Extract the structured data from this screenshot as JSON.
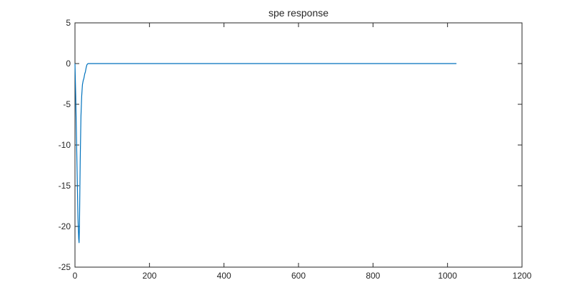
{
  "chart_data": {
    "type": "line",
    "title": "spe response",
    "xlabel": "",
    "ylabel": "",
    "xlim": [
      0,
      1200
    ],
    "ylim": [
      -25,
      5
    ],
    "xticks": [
      0,
      200,
      400,
      600,
      800,
      1000,
      1200
    ],
    "yticks": [
      5,
      0,
      -5,
      -10,
      -15,
      -20,
      -25
    ],
    "grid": false,
    "series": [
      {
        "color": "#0072bd",
        "x": [
          0,
          2,
          4,
          6,
          8,
          10,
          11,
          12,
          14,
          16,
          18,
          20,
          22,
          24,
          26,
          28,
          30,
          32,
          34,
          36,
          40,
          60,
          100,
          200,
          400,
          600,
          800,
          1000,
          1024
        ],
        "y": [
          0,
          -4,
          -9,
          -14,
          -19,
          -21.5,
          -22,
          -20,
          -12,
          -6.5,
          -4,
          -2.6,
          -2.1,
          -1.8,
          -1.3,
          -1.0,
          -0.5,
          -0.15,
          -0.03,
          0,
          0,
          0,
          0,
          0,
          0,
          0,
          0,
          0,
          0
        ]
      }
    ]
  }
}
